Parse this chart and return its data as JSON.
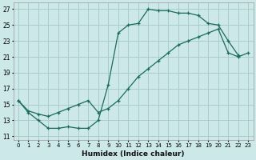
{
  "xlabel": "Humidex (Indice chaleur)",
  "bg_color": "#cce8e8",
  "grid_color": "#aacccc",
  "line_color": "#1a6b5a",
  "xlim": [
    -0.5,
    23.5
  ],
  "ylim": [
    10.5,
    27.8
  ],
  "xticks": [
    0,
    1,
    2,
    3,
    4,
    5,
    6,
    7,
    8,
    9,
    10,
    11,
    12,
    13,
    14,
    15,
    16,
    17,
    18,
    19,
    20,
    21,
    22,
    23
  ],
  "yticks": [
    11,
    13,
    15,
    17,
    19,
    21,
    23,
    25,
    27
  ],
  "line1_x": [
    0,
    1,
    2,
    3,
    4,
    5,
    6,
    7,
    8,
    9,
    10,
    11,
    12,
    13,
    14,
    15,
    16,
    17,
    18,
    19,
    20,
    21,
    22
  ],
  "line1_y": [
    15.5,
    14.0,
    13.0,
    12.0,
    12.0,
    12.2,
    12.0,
    12.0,
    13.0,
    17.5,
    24.0,
    25.0,
    25.2,
    27.0,
    26.8,
    26.8,
    26.5,
    26.5,
    26.2,
    25.2,
    25.0,
    23.0,
    21.2
  ],
  "line2_x": [
    0,
    1,
    2,
    3,
    4,
    5,
    6,
    7,
    8,
    9,
    10,
    11,
    12,
    13,
    14,
    15,
    16,
    17,
    18,
    19,
    20,
    21,
    22,
    23
  ],
  "line2_y": [
    15.5,
    14.2,
    13.8,
    13.5,
    14.0,
    14.5,
    15.0,
    15.5,
    14.0,
    14.5,
    15.5,
    17.0,
    18.5,
    19.5,
    20.5,
    21.5,
    22.5,
    23.0,
    23.5,
    24.0,
    24.5,
    21.5,
    21.0,
    21.5
  ]
}
